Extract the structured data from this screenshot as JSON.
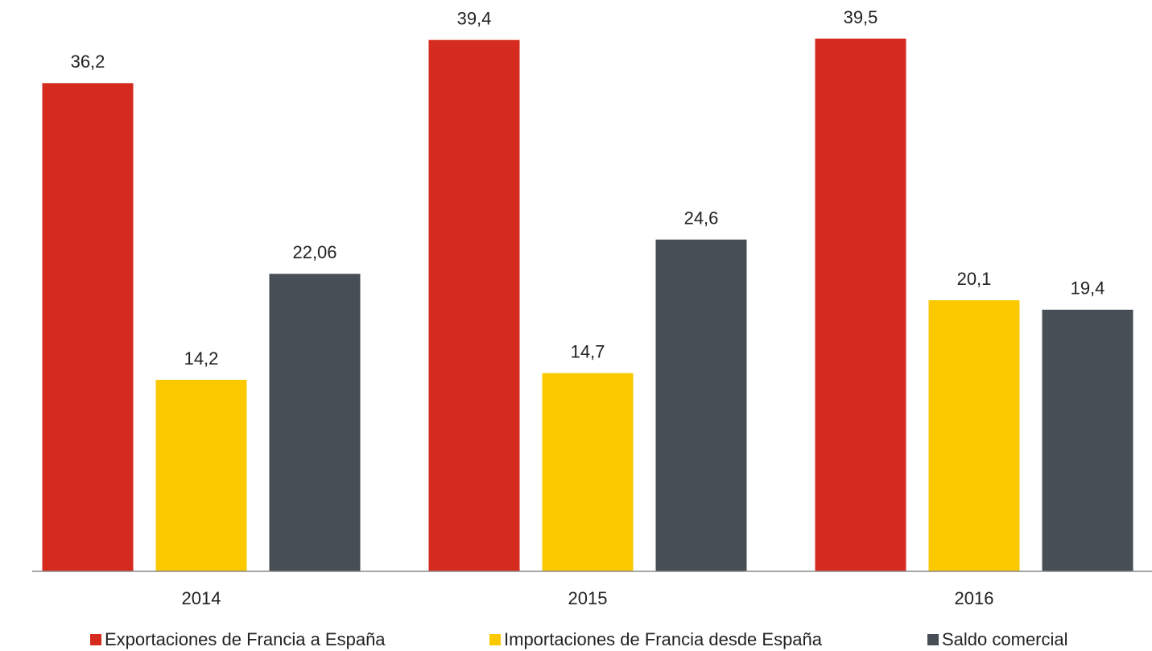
{
  "chart_data": {
    "type": "bar",
    "categories": [
      "2014",
      "2015",
      "2016"
    ],
    "series": [
      {
        "name": "Exportaciones de Francia a España",
        "color": "#d52b1e",
        "values": [
          36.2,
          39.4,
          39.5
        ],
        "value_labels": [
          "36,2",
          "39,4",
          "39,5"
        ]
      },
      {
        "name": "Importaciones de Francia desde España",
        "color": "#fcc800",
        "values": [
          14.2,
          14.7,
          20.1
        ],
        "value_labels": [
          "14,2",
          "14,7",
          "20,1"
        ]
      },
      {
        "name": "Saldo comercial",
        "color": "#474e55",
        "values": [
          22.06,
          24.6,
          19.4
        ],
        "value_labels": [
          "22,06",
          "24,6",
          "19,4"
        ]
      }
    ],
    "legend": "bottom"
  }
}
